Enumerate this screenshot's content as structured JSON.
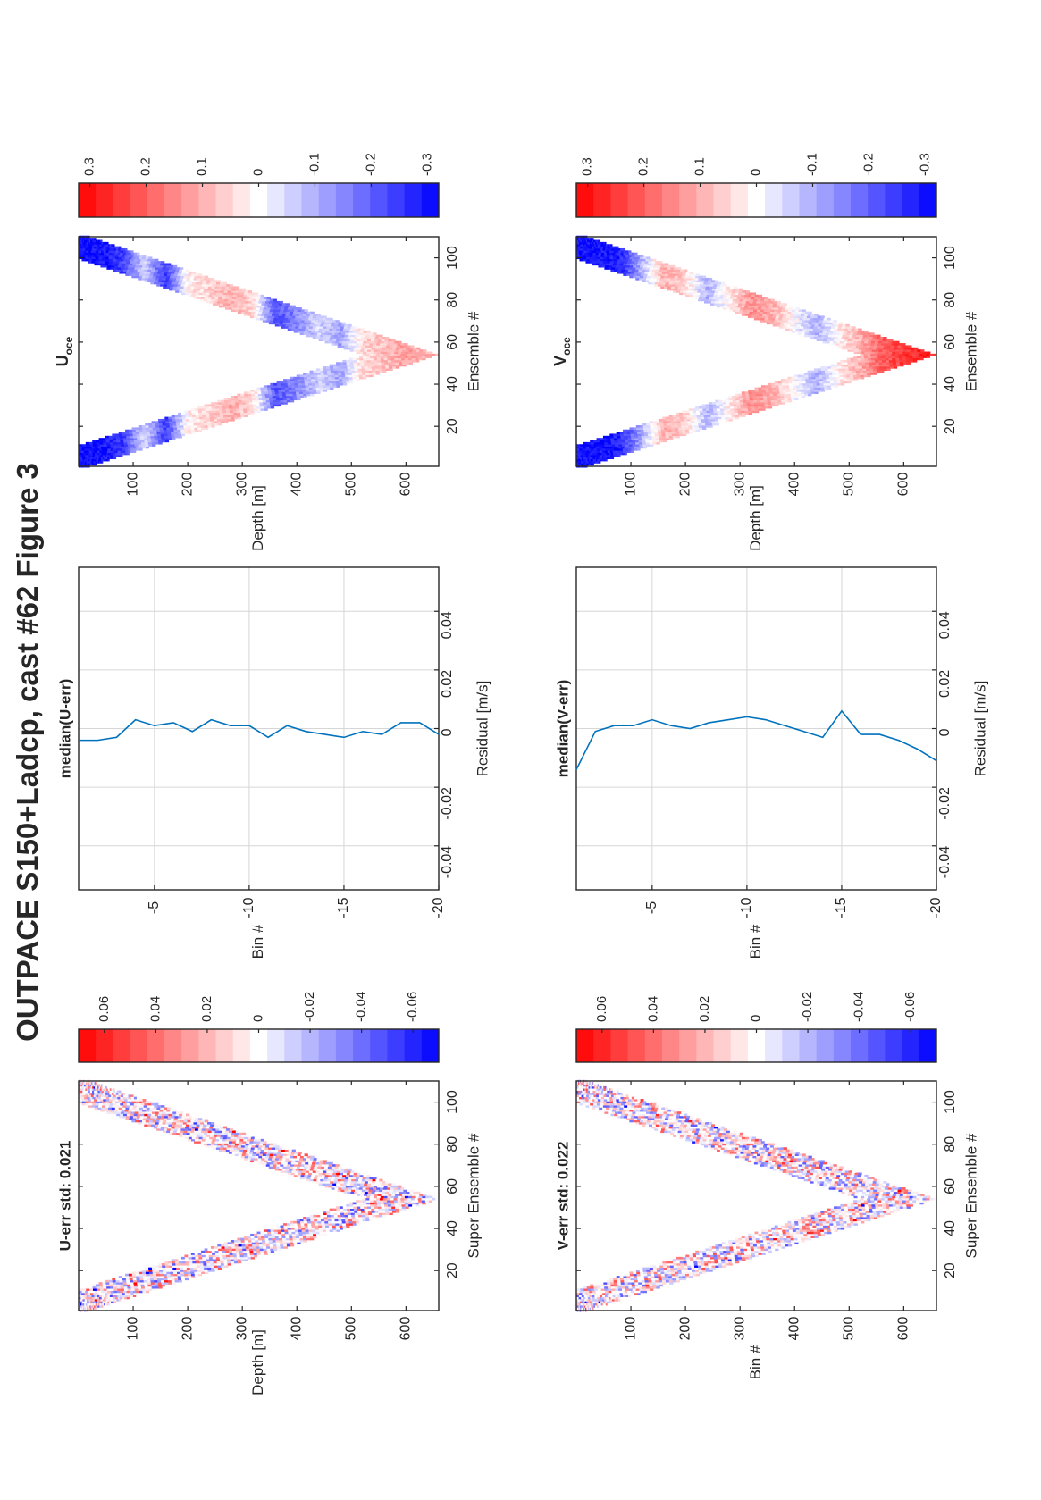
{
  "figure": {
    "title": "OUTPACE S150+Ladcp, cast #62  Figure 3",
    "orientation": "rotated 90 degrees counter-clockwise"
  },
  "colors": {
    "positive": "#ff0000",
    "neutral": "#ffffff",
    "negative": "#0000ff",
    "line": "#0072bd",
    "grid": "#d6d6d6"
  },
  "chart_data": [
    {
      "id": "u_err",
      "type": "heatmap",
      "title": "U-err std: 0.021",
      "xlabel": "Super Ensemble #",
      "ylabel": "Depth [m]",
      "xlim": [
        1,
        110
      ],
      "ylim": [
        0,
        660
      ],
      "xticks": [
        20,
        40,
        60,
        80,
        100
      ],
      "yticks": [
        100,
        200,
        300,
        400,
        500,
        600
      ],
      "color_limits": [
        -0.07,
        0.07
      ],
      "colorbar_ticks": [
        "0.06",
        "0.04",
        "0.02",
        "0",
        "-0.02",
        "-0.04",
        "-0.06"
      ],
      "bottom_peak_ensemble": 54,
      "max_depth": 660,
      "band_thickness_m": 140,
      "pattern": "noisy, small amplitude red/blue mix along V-shaped profile"
    },
    {
      "id": "u_med",
      "type": "line",
      "title": "median(U-err)",
      "xlabel": "Residual [m/s]",
      "ylabel": "Bin #",
      "xlim": [
        -0.055,
        0.055
      ],
      "ylim": [
        -20,
        -1
      ],
      "xticks": [
        -0.04,
        -0.02,
        0,
        0.02,
        0.04
      ],
      "xticklabels": [
        "-0.04",
        "-0.02",
        "0",
        "0.02",
        "0.04"
      ],
      "yticks": [
        -5,
        -10,
        -15,
        -20
      ],
      "grid": true,
      "bins": [
        -1,
        -2,
        -3,
        -4,
        -5,
        -6,
        -7,
        -8,
        -9,
        -10,
        -11,
        -12,
        -13,
        -14,
        -15,
        -16,
        -17,
        -18,
        -19,
        -20
      ],
      "values": [
        -0.004,
        -0.004,
        -0.003,
        0.003,
        0.001,
        0.002,
        -0.001,
        0.003,
        0.001,
        0.001,
        -0.003,
        0.001,
        -0.001,
        -0.002,
        -0.003,
        -0.001,
        -0.002,
        0.002,
        0.002,
        -0.002
      ]
    },
    {
      "id": "u_oce",
      "type": "heatmap",
      "title": "U",
      "title_subscript": "oce",
      "xlabel": "Ensemble #",
      "ylabel": "Depth [m]",
      "xlim": [
        1,
        110
      ],
      "ylim": [
        0,
        660
      ],
      "xticks": [
        20,
        40,
        60,
        80,
        100
      ],
      "yticks": [
        100,
        200,
        300,
        400,
        500,
        600
      ],
      "color_limits": [
        -0.32,
        0.32
      ],
      "colorbar_ticks": [
        "0.3",
        "0.2",
        "0.1",
        "0",
        "-0.1",
        "-0.2",
        "-0.3"
      ],
      "bottom_peak_ensemble": 54,
      "max_depth": 660,
      "band_thickness_m": 140,
      "profile_depths": [
        40,
        80,
        120,
        160,
        200,
        240,
        280,
        320,
        360,
        400,
        440,
        480,
        520,
        560,
        600,
        640
      ],
      "profile_values": [
        -0.3,
        -0.25,
        -0.05,
        -0.25,
        0.02,
        0.06,
        0.1,
        0.05,
        -0.22,
        -0.15,
        -0.05,
        -0.12,
        0.05,
        0.08,
        0.12,
        0.1
      ]
    },
    {
      "id": "v_err",
      "type": "heatmap",
      "title": "V-err std: 0.022",
      "xlabel": "Super Ensemble #",
      "ylabel": "Bin #",
      "xlim": [
        1,
        110
      ],
      "ylim": [
        0,
        660
      ],
      "xticks": [
        20,
        40,
        60,
        80,
        100
      ],
      "yticks": [
        100,
        200,
        300,
        400,
        500,
        600
      ],
      "color_limits": [
        -0.07,
        0.07
      ],
      "colorbar_ticks": [
        "0.06",
        "0.04",
        "0.02",
        "0",
        "-0.02",
        "-0.04",
        "-0.06"
      ],
      "bottom_peak_ensemble": 54,
      "max_depth": 660,
      "band_thickness_m": 140,
      "pattern": "noisy, small amplitude red/blue mix along V-shaped profile"
    },
    {
      "id": "v_med",
      "type": "line",
      "title": "median(V-err)",
      "xlabel": "Residual [m/s]",
      "ylabel": "Bin #",
      "xlim": [
        -0.055,
        0.055
      ],
      "ylim": [
        -20,
        -1
      ],
      "xticks": [
        -0.04,
        -0.02,
        0,
        0.02,
        0.04
      ],
      "xticklabels": [
        "-0.04",
        "-0.02",
        "0",
        "0.02",
        "0.04"
      ],
      "yticks": [
        -5,
        -10,
        -15,
        -20
      ],
      "grid": true,
      "bins": [
        -1,
        -2,
        -3,
        -4,
        -5,
        -6,
        -7,
        -8,
        -9,
        -10,
        -11,
        -12,
        -13,
        -14,
        -15,
        -16,
        -17,
        -18,
        -19,
        -20
      ],
      "values": [
        -0.014,
        -0.001,
        0.001,
        0.001,
        0.003,
        0.001,
        0,
        0.002,
        0.003,
        0.004,
        0.003,
        0.001,
        -0.001,
        -0.003,
        0.006,
        -0.002,
        -0.002,
        -0.004,
        -0.007,
        -0.011
      ]
    },
    {
      "id": "v_oce",
      "type": "heatmap",
      "title": "V",
      "title_subscript": "oce",
      "xlabel": "Ensemble #",
      "ylabel": "Depth [m]",
      "xlim": [
        1,
        110
      ],
      "ylim": [
        0,
        660
      ],
      "xticks": [
        20,
        40,
        60,
        80,
        100
      ],
      "yticks": [
        100,
        200,
        300,
        400,
        500,
        600
      ],
      "color_limits": [
        -0.32,
        0.32
      ],
      "colorbar_ticks": [
        "0.3",
        "0.2",
        "0.1",
        "0",
        "-0.1",
        "-0.2",
        "-0.3"
      ],
      "bottom_peak_ensemble": 54,
      "max_depth": 660,
      "band_thickness_m": 140,
      "profile_depths": [
        40,
        80,
        120,
        160,
        200,
        240,
        280,
        320,
        360,
        400,
        440,
        480,
        520,
        560,
        600,
        640
      ],
      "profile_values": [
        -0.3,
        -0.28,
        -0.1,
        0.1,
        0.06,
        -0.1,
        0.02,
        0.14,
        0.1,
        0.0,
        -0.1,
        0.02,
        0.1,
        0.2,
        0.25,
        0.28
      ]
    }
  ]
}
